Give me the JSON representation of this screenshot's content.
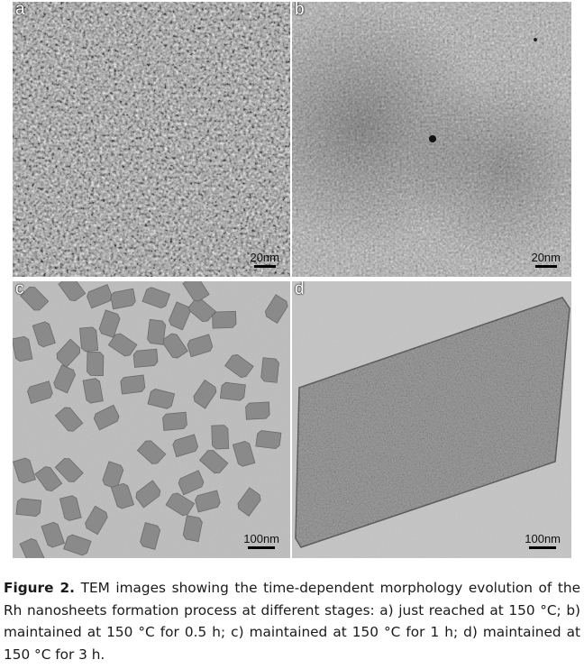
{
  "panels": [
    {
      "label": "a",
      "scale_bar": "20nm"
    },
    {
      "label": "b",
      "scale_bar": "20nm"
    },
    {
      "label": "c",
      "scale_bar": "100nm"
    },
    {
      "label": "d",
      "scale_bar": "100nm"
    }
  ],
  "caption": {
    "label": "Figure 2.",
    "text": "TEM images showing the time-dependent morphology evolution of the Rh nanosheets formation process at different stages: a) just reached at 150 °C; b) maintained at 150 °C for 0.5 h; c) maintained at 150 °C for 1 h; d) maintained at 150 °C for 3 h."
  }
}
